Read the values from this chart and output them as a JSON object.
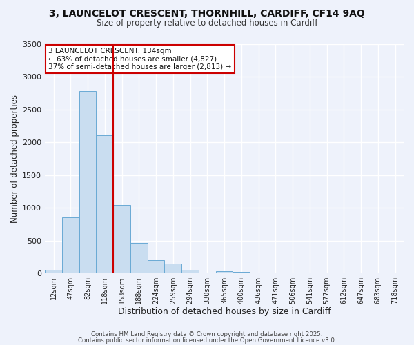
{
  "title": "3, LAUNCELOT CRESCENT, THORNHILL, CARDIFF, CF14 9AQ",
  "subtitle": "Size of property relative to detached houses in Cardiff",
  "xlabel": "Distribution of detached houses by size in Cardiff",
  "ylabel": "Number of detached properties",
  "bar_color": "#c9ddf0",
  "bar_edge_color": "#6aaad4",
  "background_color": "#eef2fb",
  "grid_color": "#ffffff",
  "categories": [
    "12sqm",
    "47sqm",
    "82sqm",
    "118sqm",
    "153sqm",
    "188sqm",
    "224sqm",
    "259sqm",
    "294sqm",
    "330sqm",
    "365sqm",
    "400sqm",
    "436sqm",
    "471sqm",
    "506sqm",
    "541sqm",
    "577sqm",
    "612sqm",
    "647sqm",
    "683sqm",
    "718sqm"
  ],
  "values": [
    50,
    850,
    2780,
    2110,
    1040,
    460,
    200,
    150,
    55,
    0,
    30,
    20,
    10,
    5,
    2,
    1,
    1,
    0,
    0,
    0,
    0
  ],
  "ylim": [
    0,
    3500
  ],
  "yticks": [
    0,
    500,
    1000,
    1500,
    2000,
    2500,
    3000,
    3500
  ],
  "vline_x": 3.5,
  "vline_color": "#cc0000",
  "annotation_title": "3 LAUNCELOT CRESCENT: 134sqm",
  "annotation_line1": "← 63% of detached houses are smaller (4,827)",
  "annotation_line2": "37% of semi-detached houses are larger (2,813) →",
  "annotation_box_color": "#ffffff",
  "annotation_box_edge": "#cc0000",
  "footer1": "Contains HM Land Registry data © Crown copyright and database right 2025.",
  "footer2": "Contains public sector information licensed under the Open Government Licence v3.0."
}
